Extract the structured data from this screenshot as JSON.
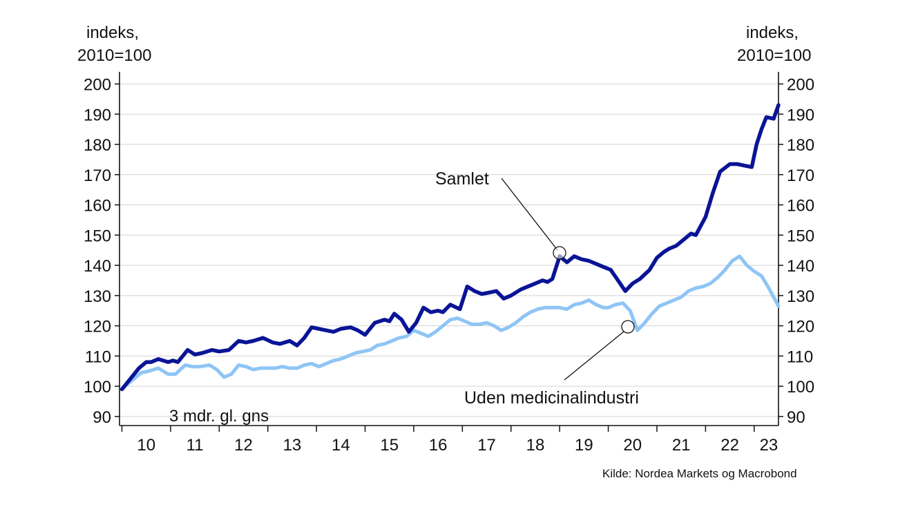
{
  "chart_data": {
    "type": "line",
    "y_left_label_line1": "indeks,",
    "y_left_label_line2": "2010=100",
    "y_right_label_line1": "indeks,",
    "y_right_label_line2": "2010=100",
    "ylim": [
      87,
      204
    ],
    "yticks": [
      90,
      100,
      110,
      120,
      130,
      140,
      150,
      160,
      170,
      180,
      190,
      200
    ],
    "xlim": [
      2009.95,
      2023.5
    ],
    "xtick_labels": [
      "10",
      "11",
      "12",
      "13",
      "14",
      "15",
      "16",
      "17",
      "18",
      "19",
      "20",
      "21",
      "22",
      "23"
    ],
    "grid": "horizontal",
    "note": "3 mdr. gl. gns",
    "source": "Kilde: Nordea Markets og Macrobond",
    "colors": {
      "samlet": "#0a1496",
      "uden": "#8ec5f5"
    },
    "series": [
      {
        "name": "Samlet",
        "x": [
          2010.0,
          2010.1,
          2010.2,
          2010.35,
          2010.5,
          2010.6,
          2010.75,
          2010.95,
          2011.05,
          2011.15,
          2011.35,
          2011.5,
          2011.65,
          2011.85,
          2012.0,
          2012.2,
          2012.4,
          2012.55,
          2012.7,
          2012.9,
          2013.1,
          2013.25,
          2013.45,
          2013.6,
          2013.75,
          2013.9,
          2014.05,
          2014.2,
          2014.35,
          2014.5,
          2014.7,
          2014.85,
          2015.0,
          2015.2,
          2015.4,
          2015.5,
          2015.6,
          2015.75,
          2015.9,
          2016.05,
          2016.2,
          2016.35,
          2016.5,
          2016.6,
          2016.75,
          2016.95,
          2017.1,
          2017.25,
          2017.4,
          2017.55,
          2017.7,
          2017.85,
          2018.0,
          2018.2,
          2018.35,
          2018.5,
          2018.65,
          2018.75,
          2018.85,
          2019.0,
          2019.15,
          2019.3,
          2019.45,
          2019.6,
          2019.75,
          2019.9,
          2020.05,
          2020.2,
          2020.35,
          2020.5,
          2020.65,
          2020.75,
          2020.85,
          2021.0,
          2021.15,
          2021.25,
          2021.4,
          2021.55,
          2021.7,
          2021.8,
          2022.0,
          2022.15,
          2022.3,
          2022.5,
          2022.65,
          2022.8,
          2022.95,
          2023.05,
          2023.15,
          2023.25,
          2023.4,
          2023.5
        ],
        "values": [
          99,
          101,
          103,
          106,
          108,
          108,
          109,
          108,
          108.5,
          108,
          112,
          110.5,
          111,
          112,
          111.5,
          112,
          115,
          114.5,
          115,
          116,
          114.5,
          114,
          115,
          113.5,
          116,
          119.5,
          119,
          118.5,
          118,
          119,
          119.5,
          118.5,
          117,
          121,
          122,
          121.5,
          124,
          122,
          118,
          121,
          126,
          124.5,
          125,
          124.5,
          127,
          125.5,
          133,
          131.5,
          130.5,
          131,
          131.5,
          129,
          130,
          132,
          133,
          134,
          135,
          134.5,
          135.5,
          143,
          141,
          143,
          142,
          141.5,
          140.5,
          139.5,
          138.5,
          135,
          131.5,
          134,
          135.5,
          137,
          138.5,
          142.5,
          144.5,
          145.5,
          146.5,
          148.5,
          150.5,
          150,
          156,
          164,
          171,
          173.5,
          173.5,
          173,
          172.5,
          180,
          185,
          189,
          188.5,
          193
        ]
      },
      {
        "name": "Uden medicinalindustri",
        "x": [
          2010.0,
          2010.1,
          2010.25,
          2010.4,
          2010.55,
          2010.75,
          2010.95,
          2011.1,
          2011.3,
          2011.45,
          2011.6,
          2011.8,
          2011.95,
          2012.1,
          2012.25,
          2012.4,
          2012.55,
          2012.7,
          2012.85,
          2013.0,
          2013.15,
          2013.3,
          2013.45,
          2013.6,
          2013.75,
          2013.9,
          2014.05,
          2014.2,
          2014.35,
          2014.5,
          2014.65,
          2014.8,
          2014.95,
          2015.1,
          2015.25,
          2015.4,
          2015.55,
          2015.7,
          2015.85,
          2016.0,
          2016.15,
          2016.3,
          2016.45,
          2016.6,
          2016.75,
          2016.9,
          2017.05,
          2017.2,
          2017.35,
          2017.5,
          2017.65,
          2017.8,
          2017.95,
          2018.1,
          2018.25,
          2018.4,
          2018.55,
          2018.7,
          2018.85,
          2019.0,
          2019.15,
          2019.3,
          2019.45,
          2019.6,
          2019.75,
          2019.9,
          2020.0,
          2020.15,
          2020.3,
          2020.45,
          2020.6,
          2020.75,
          2020.9,
          2021.05,
          2021.2,
          2021.35,
          2021.5,
          2021.65,
          2021.8,
          2021.95,
          2022.1,
          2022.25,
          2022.4,
          2022.55,
          2022.7,
          2022.85,
          2023.0,
          2023.15,
          2023.3,
          2023.5
        ],
        "values": [
          99,
          100.5,
          102.5,
          104.5,
          105,
          106,
          104,
          104,
          107,
          106.5,
          106.5,
          107,
          105.5,
          103,
          104,
          107,
          106.5,
          105.5,
          106,
          106,
          106,
          106.5,
          106,
          106,
          107,
          107.5,
          106.5,
          107.5,
          108.5,
          109,
          110,
          111,
          111.5,
          112,
          113.5,
          114,
          115,
          116,
          116.5,
          118.5,
          117.5,
          116.5,
          118,
          120,
          122,
          122.5,
          121.5,
          120.5,
          120.5,
          121,
          120,
          118.5,
          119.5,
          121,
          123,
          124.5,
          125.5,
          126,
          126,
          126,
          125.5,
          127,
          127.5,
          128.5,
          127,
          126,
          126,
          127,
          127.5,
          125,
          118.5,
          121,
          124,
          126.5,
          127.5,
          128.5,
          129.5,
          131.5,
          132.5,
          133,
          134,
          136,
          138.5,
          141.5,
          143,
          140,
          138,
          136.5,
          132.5,
          126.5
        ]
      }
    ],
    "annotations": [
      {
        "text": "Samlet"
      },
      {
        "text": "Uden medicinalindustri"
      }
    ]
  }
}
